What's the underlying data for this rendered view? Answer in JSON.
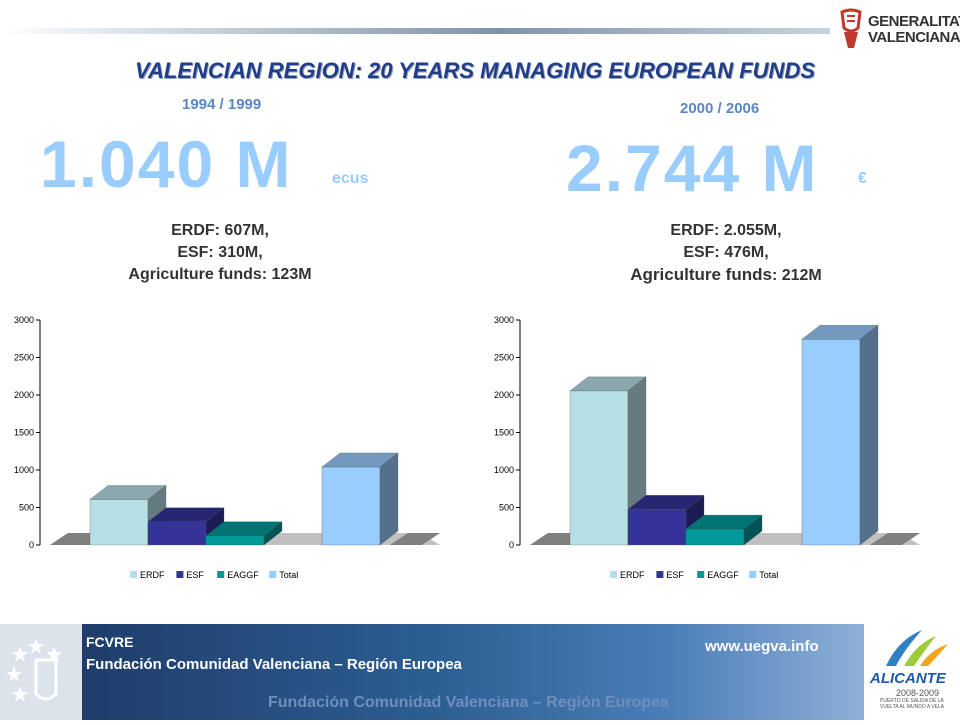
{
  "header": {
    "logo_line1": "GENERALITAT",
    "logo_line2": "VALENCIANA",
    "title": "VALENCIAN REGION: 20 YEARS MANAGING EUROPEAN FUNDS"
  },
  "left": {
    "period": "1994 / 1999",
    "total": "1.040 M",
    "unit": "ecus",
    "line1": "ERDF: 607M,",
    "line2": "ESF: 310M,",
    "line3": "Agriculture funds: 123M"
  },
  "right": {
    "period": "2000 / 2006",
    "total": "2.744 M",
    "unit": "€",
    "line1": "ERDF: 2.055M,",
    "line2": "ESF: 476M,",
    "line3a": "Agriculture funds",
    "line3b": ": 212M"
  },
  "colors": {
    "ERDF": "#b7dfe6",
    "ESF": "#333399",
    "EAGGF": "#009999",
    "Total": "#99ccff"
  },
  "chart_data": [
    {
      "type": "bar",
      "categories": [
        "ERDF",
        "ESF",
        "EAGGF",
        "Total"
      ],
      "values": [
        607,
        310,
        123,
        1040
      ],
      "ylim": [
        0,
        3000
      ],
      "yticks": [
        0,
        500,
        1000,
        1500,
        2000,
        2500,
        3000
      ],
      "legend": [
        "ERDF",
        "ESF",
        "EAGGF",
        "Total"
      ],
      "legend_position": "bottom"
    },
    {
      "type": "bar",
      "categories": [
        "ERDF",
        "ESF",
        "EAGGF",
        "Total"
      ],
      "values": [
        2055,
        476,
        212,
        2744
      ],
      "ylim": [
        0,
        3000
      ],
      "yticks": [
        0,
        500,
        1000,
        1500,
        2000,
        2500,
        3000
      ],
      "legend": [
        "ERDF",
        "ESF",
        "EAGGF",
        "Total"
      ],
      "legend_position": "bottom"
    }
  ],
  "footer": {
    "code": "FCVRE",
    "name": "Fundación Comunidad Valenciana – Región Europea",
    "url": "www.uegva.info",
    "ghost": "Fundación Comunidad Valenciana – Región Europea",
    "alicante": "ALICANTE",
    "alicante_years": "2008-2009",
    "alicante_sub": "PUERTO DE SALIDA DE LA VUELTA AL MUNDO A VELA"
  }
}
